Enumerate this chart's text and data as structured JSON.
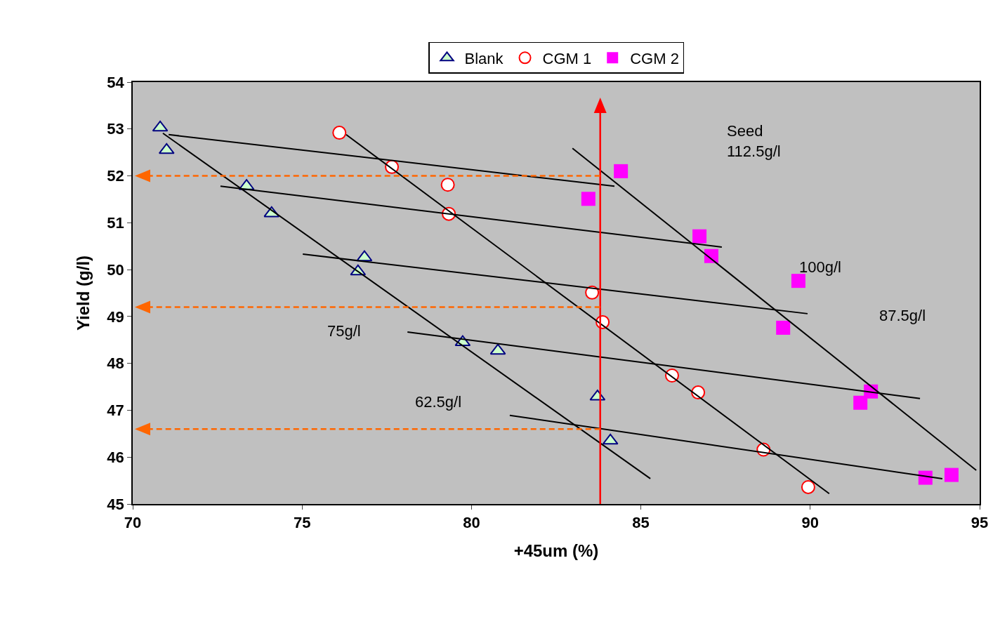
{
  "chart_data": {
    "type": "scatter",
    "xlabel": "+45um (%)",
    "ylabel": "Yield (g/l)",
    "xlim": [
      70,
      95
    ],
    "xticks": [
      70,
      75,
      80,
      85,
      90,
      95
    ],
    "ylim": [
      45,
      54
    ],
    "yticks": [
      45,
      46,
      47,
      48,
      49,
      50,
      51,
      52,
      53,
      54
    ],
    "grid": false,
    "legend": "top",
    "line_style": "solid",
    "series": [
      {
        "name": "Blank",
        "color": "#000080",
        "marker": "triangle",
        "x": [
          70.81,
          71.0,
          73.36,
          74.1,
          76.84,
          76.65,
          79.74,
          80.78,
          83.72,
          84.1
        ],
        "values": [
          53.03,
          52.55,
          51.78,
          51.2,
          50.26,
          49.96,
          48.45,
          48.27,
          47.29,
          46.35
        ]
      },
      {
        "name": "CGM 1",
        "color": "#ff0000",
        "marker": "circle",
        "x": [
          76.1,
          77.65,
          79.3,
          79.33,
          83.56,
          83.87,
          85.92,
          86.69,
          88.62,
          89.94
        ],
        "values": [
          52.92,
          52.19,
          51.81,
          51.19,
          49.51,
          48.88,
          47.74,
          47.38,
          46.16,
          45.36
        ]
      },
      {
        "name": "CGM 2",
        "color": "#ff00ff",
        "marker": "square",
        "x": [
          84.41,
          83.45,
          86.73,
          87.08,
          89.65,
          89.2,
          91.79,
          91.48,
          93.4,
          94.17
        ],
        "values": [
          52.1,
          51.51,
          50.71,
          50.29,
          49.76,
          48.76,
          47.4,
          47.16,
          45.56,
          45.62
        ]
      },
      {
        "type": "line",
        "color": "#000000",
        "x": [
          70.89,
          85.28
        ],
        "values": [
          52.91,
          45.54
        ]
      },
      {
        "type": "line",
        "color": "#000000",
        "x": [
          76.3,
          90.56
        ],
        "values": [
          52.88,
          45.22
        ]
      },
      {
        "type": "line",
        "color": "#000000",
        "x": [
          82.98,
          94.9
        ],
        "values": [
          52.59,
          45.72
        ]
      },
      {
        "type": "line",
        "color": "#000000",
        "x": [
          71.06,
          84.22
        ],
        "values": [
          52.88,
          51.78
        ]
      },
      {
        "type": "line",
        "color": "#000000",
        "x": [
          72.59,
          87.39
        ],
        "values": [
          51.78,
          50.48
        ]
      },
      {
        "type": "line",
        "color": "#000000",
        "x": [
          75.02,
          89.92
        ],
        "values": [
          50.33,
          49.06
        ]
      },
      {
        "type": "line",
        "color": "#000000",
        "x": [
          78.11,
          93.24
        ],
        "values": [
          48.67,
          47.25
        ]
      },
      {
        "type": "line",
        "color": "#000000",
        "x": [
          81.13,
          93.9
        ],
        "values": [
          46.89,
          45.54
        ]
      }
    ],
    "ref_lines": [
      {
        "axis": "x",
        "value": 83.8,
        "color": "#ff0000",
        "line_style": "solid"
      },
      {
        "axis": "y",
        "value": 52.0,
        "color": "#ff6600",
        "line_style": "dashed"
      },
      {
        "axis": "y",
        "value": 49.2,
        "color": "#ff6600",
        "line_style": "dashed"
      },
      {
        "axis": "y",
        "value": 46.6,
        "color": "#ff6600",
        "line_style": "dashed"
      }
    ],
    "annotations": [
      "Seed\n112.5g/l",
      "100g/l",
      "87.5g/l",
      "75g/l",
      "62.5g/l"
    ]
  }
}
